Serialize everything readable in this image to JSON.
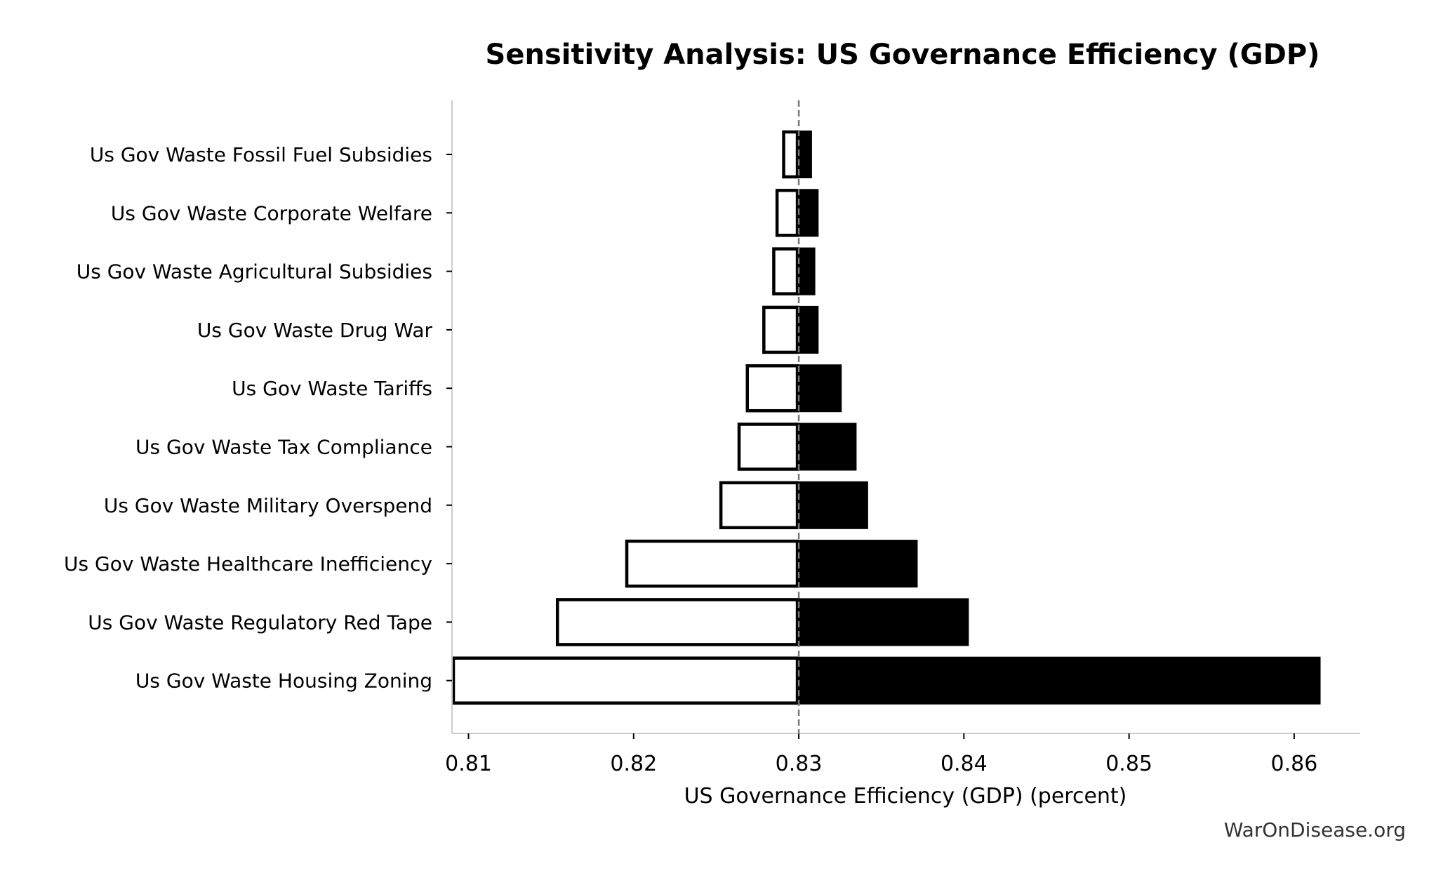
{
  "chart_data": {
    "type": "bar",
    "subtype": "tornado",
    "title": "Sensitivity Analysis: US Governance Efficiency (GDP)",
    "xlabel": "US Governance Efficiency (GDP) (percent)",
    "ylabel": "",
    "baseline": 0.83,
    "xlim": [
      0.809,
      0.864
    ],
    "xticks": [
      0.81,
      0.82,
      0.83,
      0.84,
      0.85,
      0.86
    ],
    "xtick_labels": [
      "0.81",
      "0.82",
      "0.83",
      "0.84",
      "0.85",
      "0.86"
    ],
    "grid": false,
    "categories": [
      "Us Gov Waste Fossil Fuel Subsidies",
      "Us Gov Waste Corporate Welfare",
      "Us Gov Waste Agricultural Subsidies",
      "Us Gov Waste Drug War",
      "Us Gov Waste Tariffs",
      "Us Gov Waste Tax Compliance",
      "Us Gov Waste Military Overspend",
      "Us Gov Waste Healthcare Inefficiency",
      "Us Gov Waste Regulatory Red Tape",
      "Us Gov Waste Housing Zoning"
    ],
    "series": [
      {
        "style": "outline-white",
        "values": [
          0.829,
          0.8286,
          0.8284,
          0.8278,
          0.8268,
          0.8263,
          0.8252,
          0.8195,
          0.8153,
          0.809
        ]
      },
      {
        "style": "solid-black",
        "values": [
          0.8308,
          0.8312,
          0.831,
          0.8312,
          0.8326,
          0.8335,
          0.8342,
          0.8372,
          0.8403,
          0.8616
        ]
      }
    ]
  },
  "colors": {
    "low_fill": "#ffffff",
    "high_fill": "#000000",
    "edge": "#000000",
    "baseline": "#777777",
    "spine": "#cccccc"
  },
  "watermark": "WarOnDisease.org"
}
